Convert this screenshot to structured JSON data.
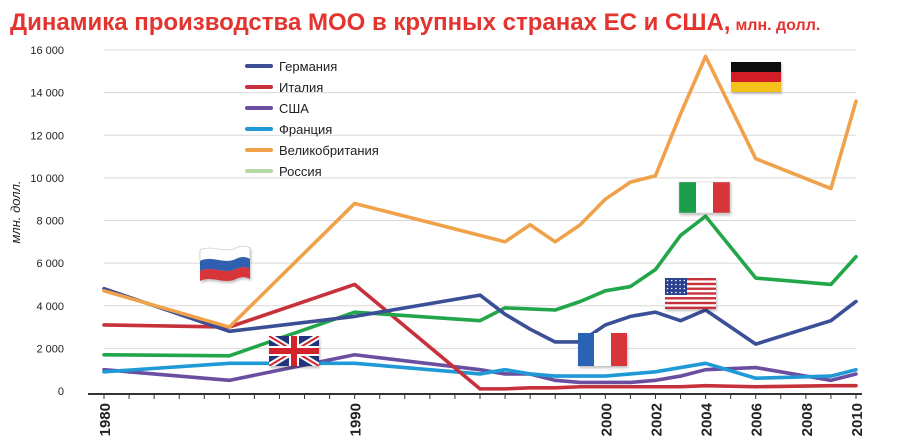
{
  "chart_data": {
    "type": "line",
    "title": "Динамика производства МОО в крупных странах ЕС и США,",
    "title_unit": "млн. долл.",
    "ylabel": "млн. долл.",
    "xlabel": "",
    "ylim": [
      0,
      16000
    ],
    "y_ticks": [
      0,
      2000,
      4000,
      6000,
      8000,
      10000,
      12000,
      14000,
      16000
    ],
    "y_tick_labels": [
      "0",
      "2 000",
      "4 000",
      "6 000",
      "8 000",
      "10 000",
      "12 000",
      "14 000",
      "16 000"
    ],
    "xlim": [
      1980,
      2010
    ],
    "x_ticks": [
      1980,
      1990,
      2000,
      2002,
      2004,
      2006,
      2008,
      2010
    ],
    "x_tick_labels": [
      "1980",
      "1990",
      "2000",
      "2002",
      "2004",
      "2006",
      "2008",
      "2010"
    ],
    "grid": "horizontal",
    "legend_position": "top-left",
    "categories": [
      "1980",
      "1985",
      "1990",
      "1995",
      "1996",
      "1997",
      "1998",
      "1999",
      "2000",
      "2001",
      "2002",
      "2003",
      "2004",
      "2005",
      "2006",
      "2007",
      "2008",
      "2009",
      "2010"
    ],
    "series": [
      {
        "name": "Германия",
        "color": "#3b4f96",
        "in_legend": true,
        "values": [
          4800,
          2800,
          3500,
          4500,
          3600,
          2900,
          2300,
          2300,
          3100,
          3500,
          3700,
          3300,
          3800,
          2200,
          3300,
          4200
        ],
        "x": [
          1980,
          1985,
          1990,
          1995,
          1996,
          1997,
          1998,
          1999,
          2000,
          2001,
          2002,
          2003,
          2004,
          2006,
          2009,
          2010
        ]
      },
      {
        "name": "Италия",
        "color": "#c7313b",
        "in_legend": true,
        "values": [
          3100,
          3000,
          5000,
          100,
          100,
          150,
          150,
          200,
          200,
          200,
          200,
          200,
          250,
          200,
          250,
          250
        ],
        "x": [
          1980,
          1985,
          1990,
          1995,
          1996,
          1997,
          1998,
          1999,
          2000,
          2001,
          2002,
          2003,
          2004,
          2006,
          2009,
          2010
        ]
      },
      {
        "name": "США",
        "color": "#6a4ea0",
        "in_legend": true,
        "values": [
          1000,
          500,
          1700,
          1000,
          800,
          800,
          500,
          400,
          400,
          400,
          500,
          700,
          1000,
          1100,
          500,
          800
        ],
        "x": [
          1980,
          1985,
          1990,
          1995,
          1996,
          1997,
          1998,
          1999,
          2000,
          2001,
          2002,
          2003,
          2004,
          2006,
          2009,
          2010
        ]
      },
      {
        "name": "Франция",
        "color": "#1f9ad6",
        "in_legend": true,
        "values": [
          900,
          1300,
          1300,
          800,
          1000,
          800,
          700,
          700,
          700,
          800,
          900,
          1100,
          1300,
          600,
          700,
          1000
        ],
        "x": [
          1980,
          1985,
          1990,
          1995,
          1996,
          1997,
          1998,
          1999,
          2000,
          2001,
          2002,
          2003,
          2004,
          2006,
          2009,
          2010
        ]
      },
      {
        "name": "Великобритания",
        "color": "#f0a24a",
        "in_legend": true,
        "values": [
          4700,
          3000,
          8800,
          7300,
          7000,
          7800,
          7000,
          7800,
          9000,
          9800,
          10100,
          13000,
          15700,
          10900,
          9500,
          13600
        ],
        "x": [
          1980,
          1985,
          1990,
          1995,
          1996,
          1997,
          1998,
          1999,
          2000,
          2001,
          2002,
          2003,
          2004,
          2006,
          2009,
          2010
        ]
      },
      {
        "name": "Россия",
        "color": "#b6d8a2",
        "in_legend": true,
        "values": [],
        "x": []
      },
      {
        "name": "",
        "color": "#22a64a",
        "in_legend": false,
        "values": [
          1700,
          1650,
          3700,
          3300,
          3900,
          3850,
          3800,
          4200,
          4700,
          4900,
          5700,
          7300,
          8200,
          5300,
          5000,
          6300
        ],
        "x": [
          1980,
          1985,
          1990,
          1995,
          1996,
          1997,
          1998,
          1999,
          2000,
          2001,
          2002,
          2003,
          2004,
          2006,
          2009,
          2010
        ]
      }
    ],
    "annotations": [
      {
        "type": "flag",
        "country": "Германия",
        "icon": "germany-flag-icon"
      },
      {
        "type": "flag",
        "country": "Италия",
        "icon": "italy-flag-icon"
      },
      {
        "type": "flag",
        "country": "США",
        "icon": "usa-flag-icon"
      },
      {
        "type": "flag",
        "country": "Франция",
        "icon": "france-flag-icon"
      },
      {
        "type": "flag",
        "country": "Великобритания",
        "icon": "uk-flag-icon"
      },
      {
        "type": "flag",
        "country": "Россия",
        "icon": "russia-flag-icon"
      }
    ]
  }
}
